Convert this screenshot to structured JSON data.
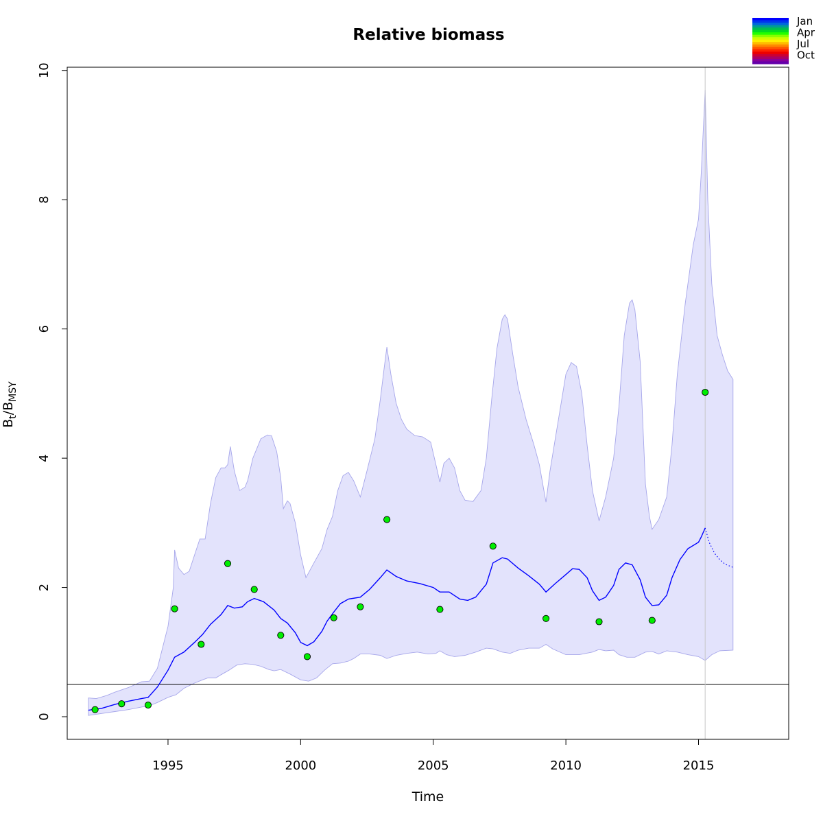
{
  "chart_data": {
    "type": "line",
    "title": "Relative biomass",
    "xlabel": "Time",
    "ylabel": {
      "main": "B",
      "sub1": "t",
      "sep": "/B",
      "sub2": "MSY"
    },
    "xlim": [
      1991.2,
      2018.4
    ],
    "ylim": [
      -0.35,
      10.05
    ],
    "x_ticks": [
      1995,
      2000,
      2005,
      2010,
      2015
    ],
    "y_ticks": [
      0,
      2,
      4,
      6,
      8,
      10
    ],
    "grid": false,
    "reference_line_y": 0.5,
    "vertical_line_x": 2015.25,
    "colors": {
      "band_fill": "#e3e3fc",
      "band_edge": "#a6a6ea",
      "line": "#0000ff",
      "points": "#00ee00",
      "ref_line": "#000000",
      "vline": "#c8c8c8"
    },
    "band_upper": [
      [
        1992.0,
        0.29
      ],
      [
        1992.3,
        0.28
      ],
      [
        1992.7,
        0.33
      ],
      [
        1993.0,
        0.38
      ],
      [
        1993.5,
        0.45
      ],
      [
        1994.0,
        0.54
      ],
      [
        1994.3,
        0.55
      ],
      [
        1994.6,
        0.75
      ],
      [
        1995.0,
        1.4
      ],
      [
        1995.2,
        2.0
      ],
      [
        1995.25,
        2.58
      ],
      [
        1995.4,
        2.3
      ],
      [
        1995.6,
        2.2
      ],
      [
        1995.8,
        2.25
      ],
      [
        1996.0,
        2.5
      ],
      [
        1996.2,
        2.75
      ],
      [
        1996.4,
        2.75
      ],
      [
        1996.6,
        3.3
      ],
      [
        1996.8,
        3.7
      ],
      [
        1997.0,
        3.85
      ],
      [
        1997.15,
        3.85
      ],
      [
        1997.25,
        3.9
      ],
      [
        1997.35,
        4.18
      ],
      [
        1997.5,
        3.8
      ],
      [
        1997.7,
        3.5
      ],
      [
        1997.9,
        3.55
      ],
      [
        1998.0,
        3.65
      ],
      [
        1998.2,
        4.0
      ],
      [
        1998.5,
        4.3
      ],
      [
        1998.75,
        4.36
      ],
      [
        1998.9,
        4.35
      ],
      [
        1999.1,
        4.1
      ],
      [
        1999.25,
        3.7
      ],
      [
        1999.35,
        3.22
      ],
      [
        1999.5,
        3.34
      ],
      [
        1999.6,
        3.3
      ],
      [
        1999.8,
        3.0
      ],
      [
        2000.0,
        2.5
      ],
      [
        2000.2,
        2.15
      ],
      [
        2000.5,
        2.38
      ],
      [
        2000.8,
        2.6
      ],
      [
        2001.0,
        2.9
      ],
      [
        2001.2,
        3.1
      ],
      [
        2001.4,
        3.5
      ],
      [
        2001.6,
        3.73
      ],
      [
        2001.8,
        3.78
      ],
      [
        2002.0,
        3.65
      ],
      [
        2002.25,
        3.4
      ],
      [
        2002.5,
        3.8
      ],
      [
        2002.8,
        4.3
      ],
      [
        2003.0,
        4.9
      ],
      [
        2003.15,
        5.4
      ],
      [
        2003.25,
        5.72
      ],
      [
        2003.4,
        5.3
      ],
      [
        2003.6,
        4.85
      ],
      [
        2003.8,
        4.6
      ],
      [
        2004.0,
        4.45
      ],
      [
        2004.3,
        4.35
      ],
      [
        2004.6,
        4.33
      ],
      [
        2004.9,
        4.25
      ],
      [
        2005.1,
        3.9
      ],
      [
        2005.25,
        3.63
      ],
      [
        2005.4,
        3.92
      ],
      [
        2005.6,
        4.0
      ],
      [
        2005.8,
        3.85
      ],
      [
        2006.0,
        3.5
      ],
      [
        2006.2,
        3.35
      ],
      [
        2006.5,
        3.33
      ],
      [
        2006.8,
        3.5
      ],
      [
        2007.0,
        4.0
      ],
      [
        2007.2,
        4.9
      ],
      [
        2007.4,
        5.7
      ],
      [
        2007.6,
        6.15
      ],
      [
        2007.7,
        6.22
      ],
      [
        2007.8,
        6.15
      ],
      [
        2008.0,
        5.6
      ],
      [
        2008.2,
        5.1
      ],
      [
        2008.5,
        4.6
      ],
      [
        2008.8,
        4.2
      ],
      [
        2009.0,
        3.9
      ],
      [
        2009.15,
        3.55
      ],
      [
        2009.25,
        3.32
      ],
      [
        2009.4,
        3.8
      ],
      [
        2009.6,
        4.3
      ],
      [
        2009.8,
        4.8
      ],
      [
        2010.0,
        5.3
      ],
      [
        2010.2,
        5.48
      ],
      [
        2010.4,
        5.42
      ],
      [
        2010.6,
        5.0
      ],
      [
        2010.8,
        4.2
      ],
      [
        2011.0,
        3.5
      ],
      [
        2011.25,
        3.03
      ],
      [
        2011.5,
        3.4
      ],
      [
        2011.8,
        4.0
      ],
      [
        2012.0,
        4.8
      ],
      [
        2012.2,
        5.9
      ],
      [
        2012.4,
        6.4
      ],
      [
        2012.5,
        6.45
      ],
      [
        2012.6,
        6.3
      ],
      [
        2012.8,
        5.5
      ],
      [
        2013.0,
        3.6
      ],
      [
        2013.15,
        3.1
      ],
      [
        2013.25,
        2.9
      ],
      [
        2013.5,
        3.05
      ],
      [
        2013.8,
        3.4
      ],
      [
        2014.0,
        4.2
      ],
      [
        2014.2,
        5.3
      ],
      [
        2014.5,
        6.4
      ],
      [
        2014.8,
        7.3
      ],
      [
        2015.0,
        7.7
      ],
      [
        2015.1,
        8.4
      ],
      [
        2015.25,
        9.7
      ],
      [
        2015.35,
        8.0
      ],
      [
        2015.5,
        6.7
      ],
      [
        2015.7,
        5.9
      ],
      [
        2015.9,
        5.6
      ],
      [
        2016.1,
        5.35
      ],
      [
        2016.3,
        5.22
      ]
    ],
    "band_lower": [
      [
        1992.0,
        0.02
      ],
      [
        1992.5,
        0.05
      ],
      [
        1993.0,
        0.08
      ],
      [
        1993.5,
        0.11
      ],
      [
        1994.0,
        0.15
      ],
      [
        1994.3,
        0.17
      ],
      [
        1994.6,
        0.22
      ],
      [
        1995.0,
        0.3
      ],
      [
        1995.3,
        0.34
      ],
      [
        1995.6,
        0.44
      ],
      [
        1996.0,
        0.52
      ],
      [
        1996.3,
        0.57
      ],
      [
        1996.5,
        0.6
      ],
      [
        1996.8,
        0.6
      ],
      [
        1997.0,
        0.65
      ],
      [
        1997.3,
        0.72
      ],
      [
        1997.6,
        0.8
      ],
      [
        1997.9,
        0.82
      ],
      [
        1998.2,
        0.81
      ],
      [
        1998.5,
        0.78
      ],
      [
        1998.8,
        0.73
      ],
      [
        1999.0,
        0.71
      ],
      [
        1999.25,
        0.73
      ],
      [
        1999.6,
        0.66
      ],
      [
        2000.0,
        0.57
      ],
      [
        2000.3,
        0.55
      ],
      [
        2000.6,
        0.6
      ],
      [
        2000.9,
        0.72
      ],
      [
        2001.2,
        0.82
      ],
      [
        2001.5,
        0.83
      ],
      [
        2001.8,
        0.86
      ],
      [
        2002.0,
        0.9
      ],
      [
        2002.25,
        0.97
      ],
      [
        2002.6,
        0.97
      ],
      [
        2003.0,
        0.95
      ],
      [
        2003.25,
        0.9
      ],
      [
        2003.6,
        0.95
      ],
      [
        2004.0,
        0.98
      ],
      [
        2004.4,
        1.0
      ],
      [
        2004.8,
        0.97
      ],
      [
        2005.1,
        0.98
      ],
      [
        2005.25,
        1.02
      ],
      [
        2005.5,
        0.96
      ],
      [
        2005.8,
        0.93
      ],
      [
        2006.2,
        0.95
      ],
      [
        2006.6,
        1.0
      ],
      [
        2007.0,
        1.06
      ],
      [
        2007.25,
        1.05
      ],
      [
        2007.6,
        1.0
      ],
      [
        2007.9,
        0.98
      ],
      [
        2008.2,
        1.03
      ],
      [
        2008.6,
        1.06
      ],
      [
        2009.0,
        1.06
      ],
      [
        2009.25,
        1.12
      ],
      [
        2009.5,
        1.05
      ],
      [
        2010.0,
        0.96
      ],
      [
        2010.5,
        0.96
      ],
      [
        2011.0,
        1.0
      ],
      [
        2011.25,
        1.04
      ],
      [
        2011.5,
        1.02
      ],
      [
        2011.8,
        1.03
      ],
      [
        2012.0,
        0.96
      ],
      [
        2012.3,
        0.92
      ],
      [
        2012.6,
        0.92
      ],
      [
        2013.0,
        1.0
      ],
      [
        2013.25,
        1.01
      ],
      [
        2013.5,
        0.97
      ],
      [
        2013.8,
        1.02
      ],
      [
        2014.2,
        1.0
      ],
      [
        2014.6,
        0.96
      ],
      [
        2015.0,
        0.93
      ],
      [
        2015.25,
        0.87
      ],
      [
        2015.5,
        0.96
      ],
      [
        2015.8,
        1.02
      ],
      [
        2016.3,
        1.03
      ]
    ],
    "series_line": [
      [
        1992.0,
        0.1
      ],
      [
        1992.5,
        0.13
      ],
      [
        1993.0,
        0.19
      ],
      [
        1993.5,
        0.24
      ],
      [
        1994.0,
        0.28
      ],
      [
        1994.25,
        0.3
      ],
      [
        1994.6,
        0.46
      ],
      [
        1995.0,
        0.72
      ],
      [
        1995.25,
        0.92
      ],
      [
        1995.6,
        1.0
      ],
      [
        1996.0,
        1.15
      ],
      [
        1996.3,
        1.27
      ],
      [
        1996.6,
        1.43
      ],
      [
        1997.0,
        1.58
      ],
      [
        1997.25,
        1.72
      ],
      [
        1997.5,
        1.68
      ],
      [
        1997.8,
        1.7
      ],
      [
        1998.0,
        1.78
      ],
      [
        1998.25,
        1.83
      ],
      [
        1998.6,
        1.78
      ],
      [
        1999.0,
        1.65
      ],
      [
        1999.25,
        1.52
      ],
      [
        1999.5,
        1.45
      ],
      [
        1999.8,
        1.3
      ],
      [
        2000.0,
        1.15
      ],
      [
        2000.25,
        1.1
      ],
      [
        2000.5,
        1.16
      ],
      [
        2000.8,
        1.32
      ],
      [
        2001.0,
        1.48
      ],
      [
        2001.25,
        1.62
      ],
      [
        2001.5,
        1.75
      ],
      [
        2001.8,
        1.82
      ],
      [
        2002.25,
        1.85
      ],
      [
        2002.6,
        1.97
      ],
      [
        2003.0,
        2.15
      ],
      [
        2003.25,
        2.27
      ],
      [
        2003.6,
        2.17
      ],
      [
        2004.0,
        2.1
      ],
      [
        2004.5,
        2.06
      ],
      [
        2005.0,
        2.0
      ],
      [
        2005.25,
        1.93
      ],
      [
        2005.6,
        1.93
      ],
      [
        2006.0,
        1.82
      ],
      [
        2006.3,
        1.8
      ],
      [
        2006.6,
        1.85
      ],
      [
        2007.0,
        2.05
      ],
      [
        2007.25,
        2.38
      ],
      [
        2007.6,
        2.46
      ],
      [
        2007.8,
        2.44
      ],
      [
        2008.2,
        2.3
      ],
      [
        2008.6,
        2.18
      ],
      [
        2009.0,
        2.05
      ],
      [
        2009.25,
        1.93
      ],
      [
        2009.6,
        2.06
      ],
      [
        2010.0,
        2.2
      ],
      [
        2010.25,
        2.29
      ],
      [
        2010.5,
        2.28
      ],
      [
        2010.8,
        2.15
      ],
      [
        2011.0,
        1.95
      ],
      [
        2011.25,
        1.8
      ],
      [
        2011.5,
        1.85
      ],
      [
        2011.8,
        2.03
      ],
      [
        2012.0,
        2.28
      ],
      [
        2012.25,
        2.38
      ],
      [
        2012.5,
        2.35
      ],
      [
        2012.8,
        2.12
      ],
      [
        2013.0,
        1.85
      ],
      [
        2013.25,
        1.72
      ],
      [
        2013.5,
        1.73
      ],
      [
        2013.8,
        1.88
      ],
      [
        2014.0,
        2.15
      ],
      [
        2014.3,
        2.43
      ],
      [
        2014.6,
        2.6
      ],
      [
        2015.0,
        2.7
      ],
      [
        2015.1,
        2.78
      ],
      [
        2015.25,
        2.92
      ]
    ],
    "series_forecast": [
      [
        2015.25,
        2.92
      ],
      [
        2015.4,
        2.7
      ],
      [
        2015.6,
        2.53
      ],
      [
        2015.8,
        2.43
      ],
      [
        2016.0,
        2.36
      ],
      [
        2016.3,
        2.31
      ]
    ],
    "observations": [
      [
        1992.25,
        0.11
      ],
      [
        1993.25,
        0.2
      ],
      [
        1994.25,
        0.18
      ],
      [
        1995.25,
        1.67
      ],
      [
        1996.25,
        1.12
      ],
      [
        1997.25,
        2.37
      ],
      [
        1998.25,
        1.97
      ],
      [
        1999.25,
        1.26
      ],
      [
        2000.25,
        0.93
      ],
      [
        2001.25,
        1.53
      ],
      [
        2002.25,
        1.7
      ],
      [
        2003.25,
        3.05
      ],
      [
        2005.25,
        1.66
      ],
      [
        2007.25,
        2.64
      ],
      [
        2009.25,
        1.52
      ],
      [
        2011.25,
        1.47
      ],
      [
        2013.25,
        1.49
      ],
      [
        2015.25,
        5.02
      ]
    ],
    "season_legend": {
      "labels": [
        "Jan",
        "Apr",
        "Jul",
        "Oct"
      ],
      "colors": [
        "#0000ff",
        "#0033ee",
        "#0066dd",
        "#009999",
        "#00bb55",
        "#00dd22",
        "#22ff00",
        "#88ff00",
        "#ccff00",
        "#ffee00",
        "#ffbb00",
        "#ff8800",
        "#ff5500",
        "#ff2200",
        "#ee0000",
        "#cc0033",
        "#aa0066",
        "#880099",
        "#6600aa"
      ]
    }
  }
}
